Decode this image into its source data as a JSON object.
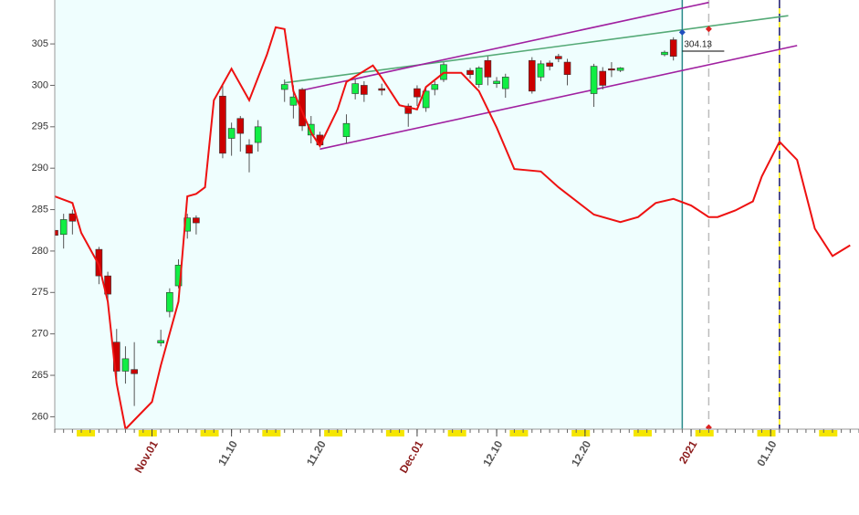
{
  "chart_data": {
    "type": "candlestick",
    "xlim": [
      "10.21",
      "01.20"
    ],
    "ylim": [
      258.5,
      310.3
    ],
    "yticks": [
      260,
      265,
      270,
      275,
      280,
      285,
      290,
      295,
      300,
      305
    ],
    "xticks": [
      {
        "value": "11.01",
        "label": "Nov.01"
      },
      "11.10",
      "11.20",
      {
        "value": "12.01",
        "label": "Dec.01"
      },
      "12.10",
      "12.20",
      {
        "value": "01.01",
        "label": "2021"
      },
      "01.10"
    ],
    "month_label_color": "#8b1a1a",
    "day_label_color": "#555555",
    "shade_until": "12.31",
    "shade_color": "#effefe",
    "candles": {
      "up_color": "#11ee44",
      "down_color": "#cc0000",
      "x": [
        "10.21",
        "10.22",
        "10.23",
        "10.26",
        "10.27",
        "10.28",
        "10.29",
        "10.30",
        "11.02",
        "11.03",
        "11.04",
        "11.05",
        "11.06",
        "11.09",
        "11.10",
        "11.11",
        "11.12",
        "11.13",
        "11.16",
        "11.17",
        "11.18",
        "11.19",
        "11.20",
        "11.23",
        "11.24",
        "11.25",
        "11.27",
        "11.30",
        "12.01",
        "12.02",
        "12.03",
        "12.04",
        "12.07",
        "12.08",
        "12.09",
        "12.10",
        "12.11",
        "12.14",
        "12.15",
        "12.16",
        "12.17",
        "12.18",
        "12.21",
        "12.22",
        "12.23",
        "12.24",
        "12.29",
        "12.30"
      ],
      "open": [
        282.5,
        282.0,
        284.5,
        280.2,
        277.0,
        269.0,
        265.5,
        265.7,
        268.9,
        272.7,
        275.8,
        282.4,
        284.0,
        298.7,
        293.6,
        296.0,
        292.8,
        293.1,
        299.5,
        297.6,
        299.5,
        294.0,
        294.0,
        293.8,
        299.0,
        300.0,
        299.6,
        297.5,
        299.6,
        297.3,
        299.5,
        300.7,
        301.8,
        300.1,
        303.0,
        300.2,
        299.6,
        303.0,
        301.0,
        302.7,
        303.5,
        302.8,
        299.0,
        301.7,
        302.0,
        301.8,
        303.7,
        305.5
      ],
      "high": [
        283.0,
        284.5,
        285.0,
        280.5,
        277.5,
        270.6,
        268.5,
        269.0,
        270.5,
        275.5,
        279.0,
        284.5,
        284.3,
        300.0,
        295.5,
        296.3,
        293.5,
        295.8,
        300.7,
        300.0,
        299.7,
        296.3,
        294.4,
        296.5,
        300.8,
        300.5,
        300.2,
        297.8,
        300.0,
        299.8,
        300.5,
        302.8,
        302.1,
        302.3,
        303.5,
        301.0,
        301.4,
        303.4,
        303.0,
        303.0,
        303.8,
        303.2,
        302.6,
        302.2,
        302.8,
        302.2,
        304.2,
        305.8
      ],
      "low": [
        281.5,
        280.3,
        282.0,
        276.0,
        273.5,
        264.5,
        264.0,
        261.3,
        268.5,
        272.0,
        275.5,
        281.5,
        282.0,
        291.2,
        291.5,
        292.0,
        289.5,
        292.0,
        298.0,
        296.0,
        294.5,
        293.0,
        292.5,
        293.0,
        298.3,
        298.0,
        298.8,
        295.0,
        297.5,
        296.8,
        298.8,
        300.4,
        300.8,
        299.7,
        300.0,
        299.7,
        298.5,
        299.0,
        300.5,
        301.8,
        302.8,
        300.0,
        297.4,
        299.5,
        301.0,
        301.6,
        303.5,
        303.0
      ],
      "close": [
        281.9,
        283.8,
        283.6,
        277.0,
        274.8,
        265.5,
        267.0,
        265.2,
        269.2,
        275.0,
        278.3,
        284.0,
        283.4,
        291.8,
        294.8,
        294.2,
        291.8,
        295.0,
        300.1,
        298.6,
        295.1,
        295.3,
        292.8,
        295.4,
        300.2,
        298.9,
        299.4,
        296.6,
        298.6,
        299.3,
        300.1,
        302.5,
        301.3,
        302.1,
        301.0,
        300.5,
        301.0,
        299.3,
        302.6,
        302.3,
        303.2,
        301.3,
        302.3,
        300.0,
        301.9,
        302.1,
        304.0,
        303.5
      ]
    },
    "curve": {
      "color": "#ee1111",
      "x": [
        "10.21",
        "10.23",
        "10.24",
        "10.26",
        "10.27",
        "10.28",
        "10.29",
        "10.30",
        "11.01",
        "11.02",
        "11.04",
        "11.05",
        "11.06",
        "11.07",
        "11.08",
        "11.10",
        "11.12",
        "11.14",
        "11.15",
        "11.16",
        "11.17",
        "11.19",
        "11.20",
        "11.22",
        "11.23",
        "11.26",
        "11.27",
        "11.29",
        "12.01",
        "12.02",
        "12.04",
        "12.06",
        "12.08",
        "12.10",
        "12.12",
        "12.15",
        "12.17",
        "12.21",
        "12.24",
        "12.26",
        "12.28",
        "12.30",
        "01.01",
        "01.03",
        "01.04",
        "01.06",
        "01.08",
        "01.09",
        "01.11",
        "01.13",
        "01.15",
        "01.17",
        "01.19"
      ],
      "values": [
        286.6,
        285.8,
        282.2,
        278.3,
        273.9,
        264.0,
        258.5,
        259.6,
        261.8,
        266.2,
        273.9,
        286.6,
        286.9,
        287.7,
        298.2,
        302.0,
        298.2,
        303.7,
        307.0,
        306.8,
        299.3,
        294.3,
        292.7,
        297.1,
        300.4,
        302.4,
        300.9,
        297.6,
        297.1,
        299.8,
        301.5,
        301.5,
        299.3,
        294.9,
        289.9,
        289.6,
        287.7,
        284.4,
        283.5,
        284.1,
        285.8,
        286.3,
        285.5,
        284.1,
        284.1,
        284.9,
        286.0,
        289.0,
        293.2,
        291.0,
        282.7,
        279.4,
        280.7
      ]
    },
    "lines": [
      {
        "color": "#55aa77",
        "x": [
          "11.16",
          "01.12"
        ],
        "values": [
          300.3,
          308.4
        ]
      },
      {
        "color": "#a020a0",
        "x": [
          "11.18",
          "01.03"
        ],
        "values": [
          299.4,
          310.0
        ]
      },
      {
        "color": "#a020a0",
        "x": [
          "11.20",
          "01.13"
        ],
        "values": [
          292.3,
          304.8
        ]
      }
    ],
    "vlines": [
      {
        "x": "12.31",
        "color": "#2a8a8a",
        "dashed": false
      },
      {
        "x": "01.03",
        "color": "#bbbbbb",
        "dashed": true
      },
      {
        "x": "01.11",
        "color": "#1a1a8a",
        "dashed": true,
        "underlay": "#ffee00"
      }
    ],
    "markers": [
      {
        "x": "12.31",
        "value": 306.4,
        "color": "#1f4fbf"
      },
      {
        "x": "01.03",
        "value": 306.8,
        "color": "#dd2222"
      },
      {
        "x": "01.03",
        "value": 258.7,
        "color": "#dd2222"
      }
    ],
    "last_price": {
      "x": "12.31",
      "value": 304.13
    }
  }
}
